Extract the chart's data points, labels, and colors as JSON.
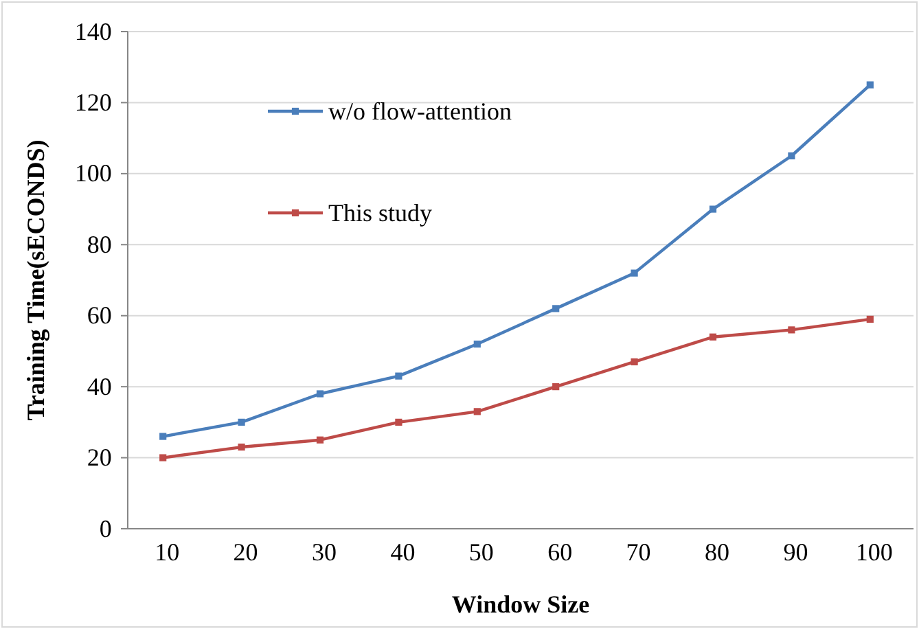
{
  "chart_data": {
    "type": "line",
    "xlabel": "Window Size",
    "ylabel": "Training Time(sECONDS)",
    "categories": [
      "10",
      "20",
      "30",
      "40",
      "50",
      "60",
      "70",
      "80",
      "90",
      "100"
    ],
    "series": [
      {
        "name": "w/o flow-attention",
        "color": "#4a7ebb",
        "values": [
          26,
          30,
          38,
          43,
          52,
          62,
          72,
          90,
          105,
          125
        ]
      },
      {
        "name": "This study",
        "color": "#be4b48",
        "values": [
          20,
          23,
          25,
          30,
          33,
          40,
          47,
          54,
          56,
          59
        ]
      }
    ],
    "ylim": [
      0,
      140
    ],
    "yticks": [
      0,
      20,
      40,
      60,
      80,
      100,
      120,
      140
    ],
    "grid": "y",
    "legend": "top left",
    "marker": "square",
    "line_style": "solid"
  }
}
